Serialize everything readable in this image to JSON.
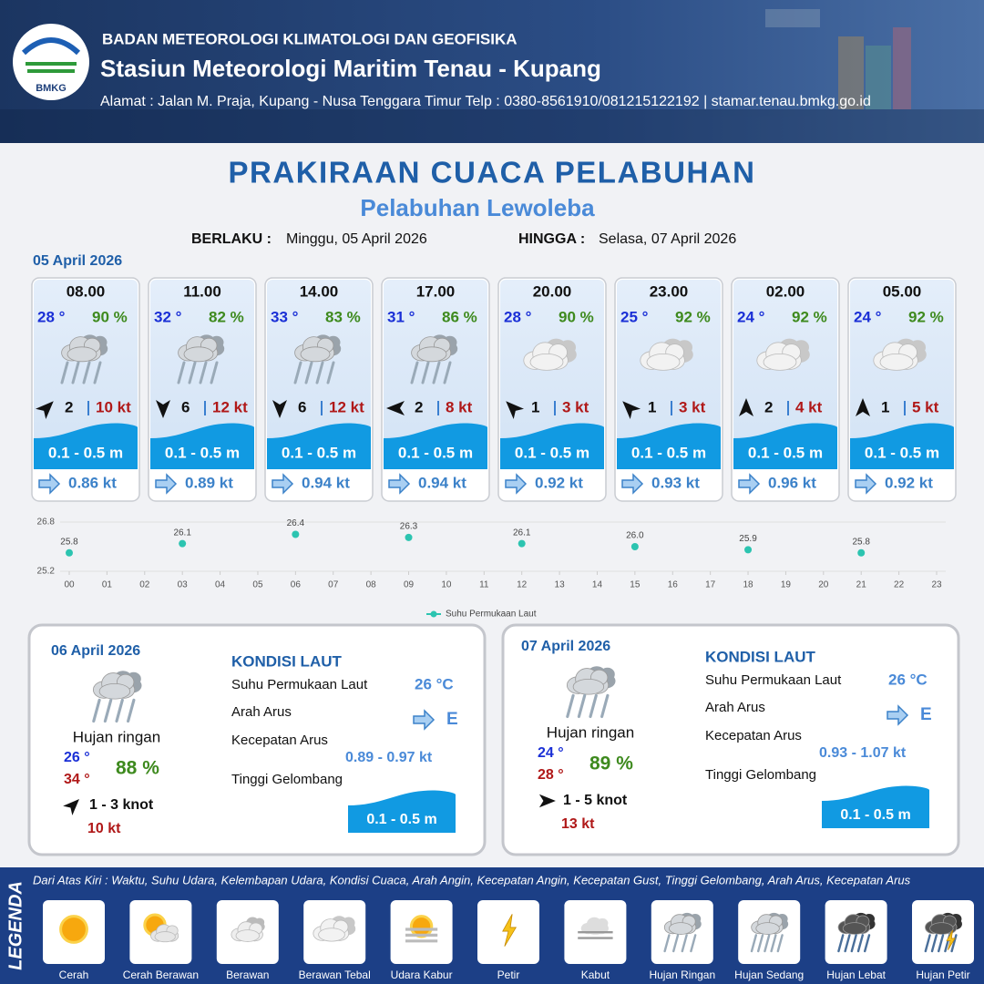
{
  "header": {
    "org": "BADAN METEOROLOGI KLIMATOLOGI DAN GEOFISIKA",
    "station": "Stasiun Meteorologi Maritim Tenau - Kupang",
    "address": "Alamat : Jalan M. Praja, Kupang - Nusa Tenggara Timur Telp : 0380-8561910/081215122192  | stamar.tenau.bmkg.go.id",
    "logo": "BMKG"
  },
  "title": "PRAKIRAAN CUACA PELABUHAN",
  "subtitle": "Pelabuhan Lewoleba",
  "validity": {
    "from_label": "BERLAKU :",
    "from": "Minggu, 05 April 2026",
    "to_label": "HINGGA :",
    "to": "Selasa, 07 April 2026"
  },
  "day1": {
    "date": "05 April 2026",
    "forecasts": [
      {
        "time": "08.00",
        "temp": "28 °",
        "humidity": "90 %",
        "icon": "hujan-ringan",
        "wind_direction": 45,
        "wind": "2",
        "gust": "10 kt",
        "wave": "0.1 - 0.5 m",
        "current": "0.86 kt"
      },
      {
        "time": "11.00",
        "temp": "32 °",
        "humidity": "82 %",
        "icon": "hujan-ringan",
        "wind_direction": 180,
        "wind": "6",
        "gust": "12 kt",
        "wave": "0.1 - 0.5 m",
        "current": "0.89 kt"
      },
      {
        "time": "14.00",
        "temp": "33 °",
        "humidity": "83 %",
        "icon": "hujan-ringan",
        "wind_direction": 180,
        "wind": "6",
        "gust": "12 kt",
        "wave": "0.1 - 0.5 m",
        "current": "0.94 kt"
      },
      {
        "time": "17.00",
        "temp": "31 °",
        "humidity": "86 %",
        "icon": "hujan-ringan",
        "wind_direction": 270,
        "wind": "2",
        "gust": "8 kt",
        "wave": "0.1 - 0.5 m",
        "current": "0.94 kt"
      },
      {
        "time": "20.00",
        "temp": "28 °",
        "humidity": "90 %",
        "icon": "berawan-tebal",
        "wind_direction": 315,
        "wind": "1",
        "gust": "3 kt",
        "wave": "0.1 - 0.5 m",
        "current": "0.92 kt"
      },
      {
        "time": "23.00",
        "temp": "25 °",
        "humidity": "92 %",
        "icon": "berawan-tebal",
        "wind_direction": 315,
        "wind": "1",
        "gust": "3 kt",
        "wave": "0.1 - 0.5 m",
        "current": "0.93 kt"
      },
      {
        "time": "02.00",
        "temp": "24 °",
        "humidity": "92 %",
        "icon": "berawan-tebal",
        "wind_direction": 0,
        "wind": "2",
        "gust": "4 kt",
        "wave": "0.1 - 0.5 m",
        "current": "0.96 kt"
      },
      {
        "time": "05.00",
        "temp": "24 °",
        "humidity": "92 %",
        "icon": "berawan-tebal",
        "wind_direction": 0,
        "wind": "1",
        "gust": "5 kt",
        "wave": "0.1 - 0.5 m",
        "current": "0.92 kt"
      }
    ]
  },
  "chart_data": {
    "type": "scatter",
    "x": [
      0,
      3,
      6,
      9,
      12,
      15,
      18,
      21
    ],
    "series": [
      {
        "name": "Suhu Permukaan Laut",
        "color": "#2cc4b0",
        "values": [
          25.8,
          26.1,
          26.4,
          26.3,
          26.1,
          26.0,
          25.9,
          25.8
        ],
        "value_labels": [
          "25.8",
          "26.1",
          "26.4",
          "26.3",
          "26.1",
          "26.0",
          "25.9",
          "25.8"
        ]
      }
    ],
    "xlim": [
      0,
      23
    ],
    "xticks": [
      {
        "value": 0,
        "label": "00"
      },
      {
        "value": 1,
        "label": "01"
      },
      {
        "value": 2,
        "label": "02"
      },
      {
        "value": 3,
        "label": "03"
      },
      {
        "value": 4,
        "label": "04"
      },
      {
        "value": 5,
        "label": "05"
      },
      {
        "value": 6,
        "label": "06"
      },
      {
        "value": 7,
        "label": "07"
      },
      {
        "value": 8,
        "label": "08"
      },
      {
        "value": 9,
        "label": "09"
      },
      10,
      11,
      12,
      13,
      14,
      15,
      16,
      17,
      18,
      19,
      20,
      21,
      22,
      23
    ],
    "ylim": [
      25.2,
      26.8
    ],
    "yticks": [
      25.2,
      26.8
    ],
    "grid": true
  },
  "days": [
    {
      "date": "06 April 2026",
      "icon": "hujan-ringan",
      "condition": "Hujan ringan",
      "temp_min": "26 °",
      "temp_max": "34 °",
      "humidity": "88 %",
      "wind_direction": 45,
      "wind": "1 - 3 knot",
      "gust": "10 kt",
      "sea_title": "KONDISI LAUT",
      "sst_label": "Suhu Permukaan Laut",
      "sst": "26 °C",
      "current_dir_label": "Arah Arus",
      "current_dir": "E",
      "current_speed_label": "Kecepatan Arus",
      "current_speed": "0.89 - 0.97 kt",
      "wave_label": "Tinggi Gelombang",
      "wave": "0.1 - 0.5 m"
    },
    {
      "date": "07 April 2026",
      "icon": "hujan-ringan",
      "condition": "Hujan ringan",
      "temp_min": "24 °",
      "temp_max": "28 °",
      "humidity": "89 %",
      "wind_direction": 90,
      "wind": "1 - 5 knot",
      "gust": "13 kt",
      "sea_title": "KONDISI LAUT",
      "sst_label": "Suhu Permukaan Laut",
      "sst": "26 °C",
      "current_dir_label": "Arah Arus",
      "current_dir": "E",
      "current_speed_label": "Kecepatan Arus",
      "current_speed": "0.93 - 1.07 kt",
      "wave_label": "Tinggi Gelombang",
      "wave": "0.1 - 0.5 m"
    }
  ],
  "legend": {
    "title": "LEGENDA",
    "description": "Dari Atas Kiri : Waktu, Suhu Udara, Kelembapan Udara, Kondisi Cuaca, Arah Angin, Kecepatan Angin, Kecepatan Gust, Tinggi Gelombang, Arah Arus, Kecepatan Arus",
    "items": [
      {
        "label": "Cerah",
        "icon": "cerah"
      },
      {
        "label": "Cerah Berawan",
        "icon": "cerah-berawan"
      },
      {
        "label": "Berawan",
        "icon": "berawan"
      },
      {
        "label": "Berawan Tebal",
        "icon": "berawan-tebal"
      },
      {
        "label": "Udara Kabur",
        "icon": "udara-kabur"
      },
      {
        "label": "Petir",
        "icon": "petir"
      },
      {
        "label": "Kabut",
        "icon": "kabut"
      },
      {
        "label": "Hujan Ringan",
        "icon": "hujan-ringan"
      },
      {
        "label": "Hujan Sedang",
        "icon": "hujan-sedang"
      },
      {
        "label": "Hujan Lebat",
        "icon": "hujan-lebat"
      },
      {
        "label": "Hujan Petir",
        "icon": "hujan-petir"
      }
    ]
  }
}
